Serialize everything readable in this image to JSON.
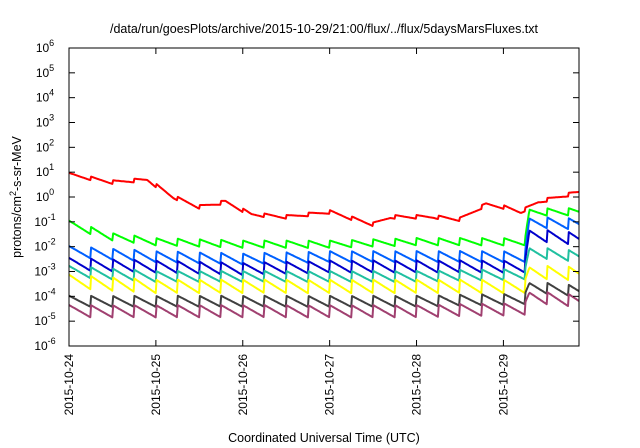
{
  "chart_data": {
    "type": "line",
    "title": "/data/run/goesPlots/archive/2015-10-29/21:00/flux/../flux/5daysMarsFluxes.txt",
    "xlabel": "Coordinated Universal Time (UTC)",
    "ylabel_main": "protons/cm",
    "ylabel_sup": "2",
    "ylabel_rest": "-s-sr-MeV",
    "x_range_days": [
      0,
      5.87
    ],
    "y_log_range": [
      -6,
      6
    ],
    "grid": false,
    "legend": "none",
    "x_ticks": [
      {
        "day": 0,
        "label": "2015-10-24"
      },
      {
        "day": 1,
        "label": "2015-10-25"
      },
      {
        "day": 2,
        "label": "2015-10-26"
      },
      {
        "day": 3,
        "label": "2015-10-27"
      },
      {
        "day": 4,
        "label": "2015-10-28"
      },
      {
        "day": 5,
        "label": "2015-10-29"
      }
    ],
    "y_ticks": [
      {
        "exp": 6,
        "label": "10",
        "sup": "6"
      },
      {
        "exp": 5,
        "label": "10",
        "sup": "5"
      },
      {
        "exp": 4,
        "label": "10",
        "sup": "4"
      },
      {
        "exp": 3,
        "label": "10",
        "sup": "3"
      },
      {
        "exp": 2,
        "label": "10",
        "sup": "2"
      },
      {
        "exp": 1,
        "label": "10",
        "sup": "1"
      },
      {
        "exp": 0,
        "label": "10",
        "sup": "0"
      },
      {
        "exp": -1,
        "label": "10",
        "sup": "-1"
      },
      {
        "exp": -2,
        "label": "10",
        "sup": "-2"
      },
      {
        "exp": -3,
        "label": "10",
        "sup": "-3"
      },
      {
        "exp": -4,
        "label": "10",
        "sup": "-4"
      },
      {
        "exp": -5,
        "label": "10",
        "sup": "-5"
      },
      {
        "exp": -6,
        "label": "10",
        "sup": "-6"
      }
    ],
    "series": [
      {
        "color": "#ff0000",
        "sawtooth_amp": 0.15,
        "points": [
          [
            0,
            0.9
          ],
          [
            0.5,
            0.6
          ],
          [
            0.9,
            0.7
          ],
          [
            1.2,
            0.0
          ],
          [
            1.5,
            -0.4
          ],
          [
            1.8,
            -0.2
          ],
          [
            2.1,
            -0.7
          ],
          [
            2.5,
            -0.8
          ],
          [
            3.0,
            -0.6
          ],
          [
            3.5,
            -1.1
          ],
          [
            3.7,
            -0.8
          ],
          [
            4.2,
            -0.8
          ],
          [
            4.5,
            -0.9
          ],
          [
            4.8,
            -0.3
          ],
          [
            5.0,
            -0.4
          ],
          [
            5.2,
            -0.6
          ],
          [
            5.4,
            -0.2
          ],
          [
            5.87,
            0.2
          ]
        ]
      },
      {
        "color": "#00ff00",
        "sawtooth_amp": 0.3,
        "points": [
          [
            0,
            -1.1
          ],
          [
            0.5,
            -1.6
          ],
          [
            1.0,
            -1.8
          ],
          [
            2.0,
            -1.9
          ],
          [
            3.0,
            -1.9
          ],
          [
            4.0,
            -1.8
          ],
          [
            5.25,
            -1.8
          ],
          [
            5.3,
            -0.6
          ],
          [
            5.87,
            -0.6
          ]
        ]
      },
      {
        "color": "#0060ff",
        "sawtooth_amp": 0.45,
        "points": [
          [
            0,
            -2.2
          ],
          [
            1.0,
            -2.4
          ],
          [
            2.0,
            -2.5
          ],
          [
            3.0,
            -2.4
          ],
          [
            4.0,
            -2.4
          ],
          [
            5.25,
            -2.4
          ],
          [
            5.3,
            -1.0
          ],
          [
            5.87,
            -1.1
          ]
        ]
      },
      {
        "color": "#0000cc",
        "sawtooth_amp": 0.5,
        "points": [
          [
            0,
            -2.7
          ],
          [
            1.0,
            -2.8
          ],
          [
            2.0,
            -2.9
          ],
          [
            3.0,
            -2.8
          ],
          [
            4.0,
            -2.8
          ],
          [
            5.25,
            -2.8
          ],
          [
            5.3,
            -1.5
          ],
          [
            5.87,
            -1.7
          ]
        ]
      },
      {
        "color": "#20c0a0",
        "sawtooth_amp": 0.45,
        "points": [
          [
            0,
            -3.0
          ],
          [
            1.0,
            -3.2
          ],
          [
            2.0,
            -3.2
          ],
          [
            3.0,
            -3.2
          ],
          [
            4.0,
            -3.2
          ],
          [
            5.25,
            -3.1
          ],
          [
            5.3,
            -2.2
          ],
          [
            5.87,
            -2.4
          ]
        ]
      },
      {
        "color": "#ffff00",
        "sawtooth_amp": 0.55,
        "points": [
          [
            0,
            -3.4
          ],
          [
            1.0,
            -3.6
          ],
          [
            2.0,
            -3.6
          ],
          [
            3.0,
            -3.6
          ],
          [
            4.0,
            -3.6
          ],
          [
            5.25,
            -3.6
          ],
          [
            5.3,
            -3.0
          ],
          [
            5.87,
            -3.1
          ]
        ]
      },
      {
        "color": "#404040",
        "sawtooth_amp": 0.45,
        "points": [
          [
            0,
            -4.2
          ],
          [
            1.0,
            -4.2
          ],
          [
            2.0,
            -4.2
          ],
          [
            3.0,
            -4.2
          ],
          [
            4.0,
            -4.2
          ],
          [
            5.25,
            -4.1
          ],
          [
            5.3,
            -3.6
          ],
          [
            5.87,
            -3.8
          ]
        ]
      },
      {
        "color": "#a04070",
        "sawtooth_amp": 0.5,
        "points": [
          [
            0,
            -4.6
          ],
          [
            1.0,
            -4.6
          ],
          [
            2.0,
            -4.6
          ],
          [
            3.0,
            -4.6
          ],
          [
            4.0,
            -4.6
          ],
          [
            5.25,
            -4.5
          ],
          [
            5.3,
            -4.0
          ],
          [
            5.87,
            -4.2
          ]
        ]
      }
    ]
  }
}
